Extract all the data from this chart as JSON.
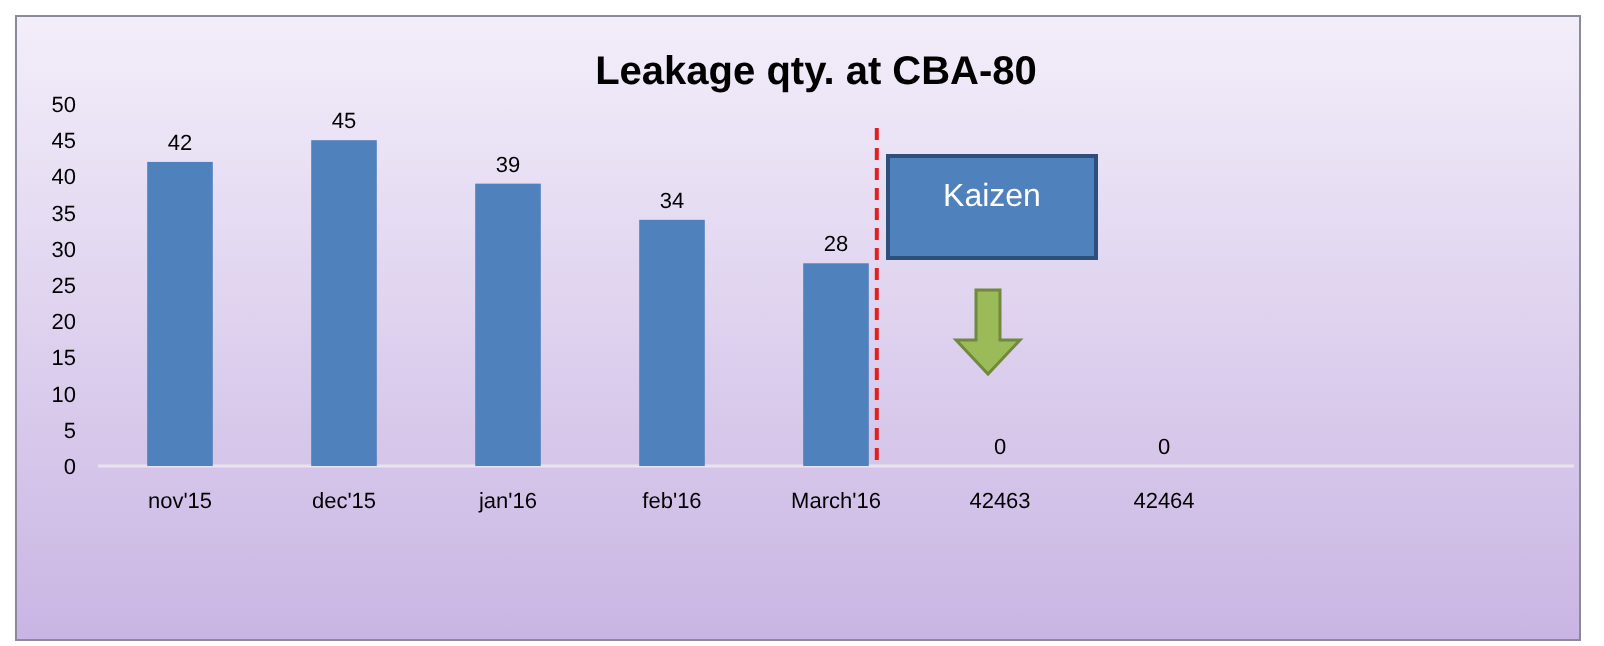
{
  "chart_data": {
    "type": "bar",
    "title": "Leakage qty. at CBA-80",
    "categories": [
      "nov'15",
      "dec'15",
      "jan'16",
      "feb'16",
      "March'16",
      "42463",
      "42464",
      null,
      null
    ],
    "values": [
      42,
      45,
      39,
      34,
      28,
      0,
      0,
      null,
      null
    ],
    "color": "#4f81bd",
    "ylim": [
      0,
      50
    ],
    "yticks": [
      0,
      5,
      10,
      15,
      20,
      25,
      30,
      35,
      40,
      45,
      50
    ],
    "grid": false,
    "data_labels": true,
    "ref_lines": [
      {
        "axis": "x",
        "value": "March'16",
        "color": "#e02020",
        "line_style": "dashed"
      }
    ],
    "annotations": [
      "Kaizen"
    ]
  }
}
